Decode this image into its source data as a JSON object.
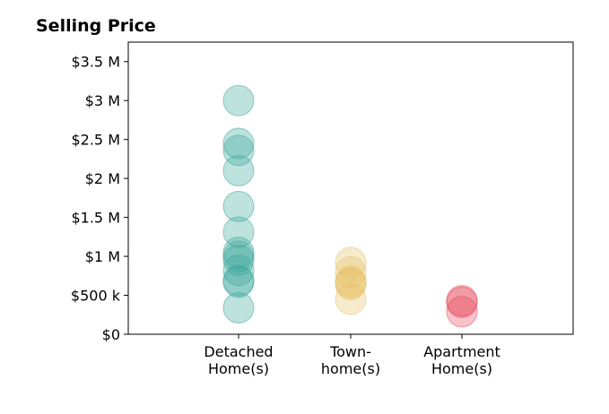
{
  "chart_data": {
    "type": "scatter",
    "title": "Selling Price",
    "xlabel": "",
    "ylabel": "",
    "ylim": [
      0,
      3750000
    ],
    "grid": false,
    "y_ticks": [
      {
        "value": 0,
        "label": "$0"
      },
      {
        "value": 500000,
        "label": "$500 k"
      },
      {
        "value": 1000000,
        "label": "$1 M"
      },
      {
        "value": 1500000,
        "label": "$1.5 M"
      },
      {
        "value": 2000000,
        "label": "$2 M"
      },
      {
        "value": 2500000,
        "label": "$2.5 M"
      },
      {
        "value": 3000000,
        "label": "$3 M"
      },
      {
        "value": 3500000,
        "label": "$3.5 M"
      }
    ],
    "categories": [
      {
        "lines": [
          "Detached",
          "Home(s)"
        ]
      },
      {
        "lines": [
          "Town-",
          "home(s)"
        ]
      },
      {
        "lines": [
          "Apartment",
          "Home(s)"
        ]
      }
    ],
    "series": [
      {
        "category": 0,
        "color": "#3aa89a",
        "values": [
          3000000,
          2450000,
          2360000,
          2100000,
          1640000,
          1310000,
          1050000,
          1000000,
          950000,
          820000,
          690000,
          670000,
          340000
        ]
      },
      {
        "category": 1,
        "color": "#e8c267",
        "values": [
          920000,
          800000,
          680000,
          660000,
          640000,
          450000
        ]
      },
      {
        "category": 2,
        "color": "#e8485b",
        "values": [
          430000,
          410000,
          290000
        ]
      }
    ]
  }
}
